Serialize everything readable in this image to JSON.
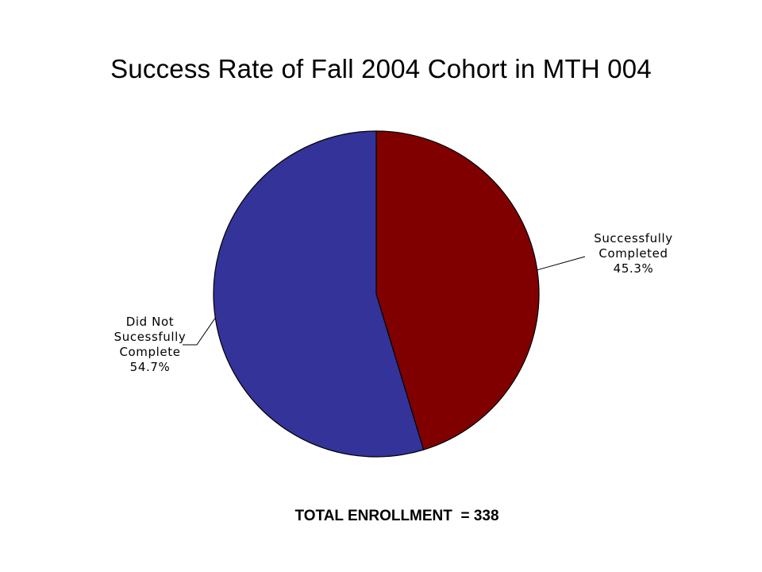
{
  "chart_data": {
    "type": "pie",
    "title": "Success Rate of Fall 2004 Cohort in MTH 004",
    "slices": [
      {
        "label_lines": [
          "Successfully",
          "Completed"
        ],
        "value": 45.3,
        "value_label": "45.3%",
        "color": "#800000"
      },
      {
        "label_lines": [
          "Did Not",
          "Sucessfully",
          "Complete"
        ],
        "value": 54.7,
        "value_label": "54.7%",
        "color": "#333399"
      }
    ],
    "start_angle": "12 o'clock",
    "direction": "clockwise",
    "legend": "none",
    "footnote": "TOTAL ENROLLMENT  = 338"
  }
}
